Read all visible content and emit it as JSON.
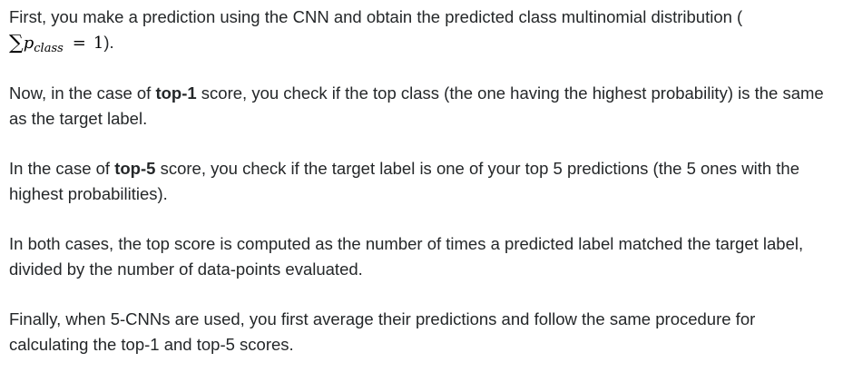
{
  "paragraphs": {
    "p1": {
      "text": "First, you make a prediction using the CNN and obtain the predicted class multinomial distribution (",
      "math": {
        "sum_symbol": "∑",
        "variable": "p",
        "subscript": "class",
        "equals": "=",
        "value": "1"
      },
      "text_end": ")."
    },
    "p2": {
      "before": "Now, in the case of ",
      "bold": "top-1",
      "after": " score, you check if the top class (the one having the highest probability) is the same as the target label."
    },
    "p3": {
      "before": "In the case of ",
      "bold": "top-5",
      "after": " score, you check if the target label is one of your top 5 predictions (the 5 ones with the highest probabilities)."
    },
    "p4": {
      "text": "In both cases, the top score is computed as the number of times a predicted label matched the target label, divided by the number of data-points evaluated."
    },
    "p5": {
      "text": "Finally, when 5-CNNs are used, you first average their predictions and follow the same procedure for calculating the top-1 and top-5 scores."
    }
  }
}
